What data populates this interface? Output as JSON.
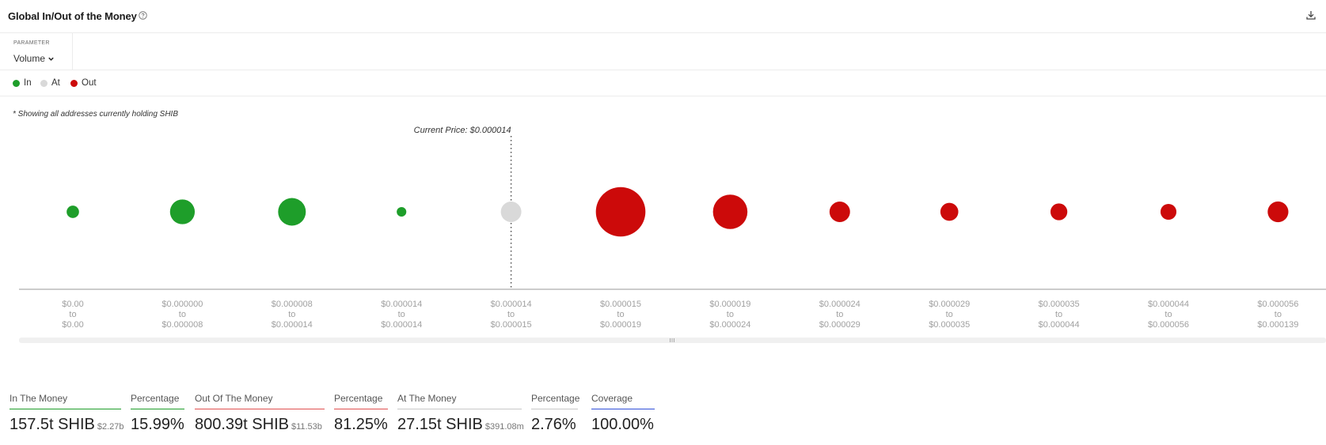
{
  "header": {
    "title": "Global In/Out of the Money"
  },
  "parameter": {
    "label": "PARAMETER",
    "value": "Volume"
  },
  "legend": [
    {
      "label": "In",
      "color": "#1e9e2a"
    },
    {
      "label": "At",
      "color": "#d9d9d9"
    },
    {
      "label": "Out",
      "color": "#cc0a0a"
    }
  ],
  "note": "* Showing all addresses currently holding SHIB",
  "chart_data": {
    "type": "scatter",
    "title": "",
    "xlabel": "",
    "ylabel": "",
    "current_price_label": "Current Price: $0.000014",
    "marker_size_encodes": "Volume",
    "categories": [
      "$0.00 to $0.00",
      "$0.000000 to $0.000008",
      "$0.000008 to $0.000014",
      "$0.000014 to $0.000014",
      "$0.000014 to $0.000015",
      "$0.000015 to $0.000019",
      "$0.000019 to $0.000024",
      "$0.000024 to $0.000029",
      "$0.000029 to $0.000035",
      "$0.000035 to $0.000044",
      "$0.000044 to $0.000056",
      "$0.000056 to $0.000139"
    ],
    "ranges": [
      {
        "from": "$0.00",
        "to": "$0.00"
      },
      {
        "from": "$0.000000",
        "to": "$0.000008"
      },
      {
        "from": "$0.000008",
        "to": "$0.000014"
      },
      {
        "from": "$0.000014",
        "to": "$0.000014"
      },
      {
        "from": "$0.000014",
        "to": "$0.000015"
      },
      {
        "from": "$0.000015",
        "to": "$0.000019"
      },
      {
        "from": "$0.000019",
        "to": "$0.000024"
      },
      {
        "from": "$0.000024",
        "to": "$0.000029"
      },
      {
        "from": "$0.000029",
        "to": "$0.000035"
      },
      {
        "from": "$0.000035",
        "to": "$0.000044"
      },
      {
        "from": "$0.000044",
        "to": "$0.000056"
      },
      {
        "from": "$0.000056",
        "to": "$0.000139"
      }
    ],
    "status": [
      "In",
      "In",
      "In",
      "In",
      "At",
      "Out",
      "Out",
      "Out",
      "Out",
      "Out",
      "Out",
      "Out"
    ],
    "relative_size": [
      0.2,
      0.8,
      1.0,
      0.12,
      0.55,
      3.2,
      1.55,
      0.55,
      0.42,
      0.37,
      0.33,
      0.56
    ],
    "current_price_index": 4,
    "connector_word": "to"
  },
  "stats": [
    {
      "label": "In The Money",
      "value": "157.5t SHIB",
      "sub": "$2.27b",
      "color": "#1e9e2a"
    },
    {
      "label": "Percentage",
      "value": "15.99%",
      "sub": "",
      "color": "#1e9e2a"
    },
    {
      "label": "Out Of The Money",
      "value": "800.39t SHIB",
      "sub": "$11.53b",
      "color": "#e05050"
    },
    {
      "label": "Percentage",
      "value": "81.25%",
      "sub": "",
      "color": "#e05050"
    },
    {
      "label": "At The Money",
      "value": "27.15t SHIB",
      "sub": "$391.08m",
      "color": "#c8c8c8"
    },
    {
      "label": "Percentage",
      "value": "2.76%",
      "sub": "",
      "color": "#c8c8c8"
    },
    {
      "label": "Coverage",
      "value": "100.00%",
      "sub": "",
      "color": "#2f4fd8"
    }
  ]
}
